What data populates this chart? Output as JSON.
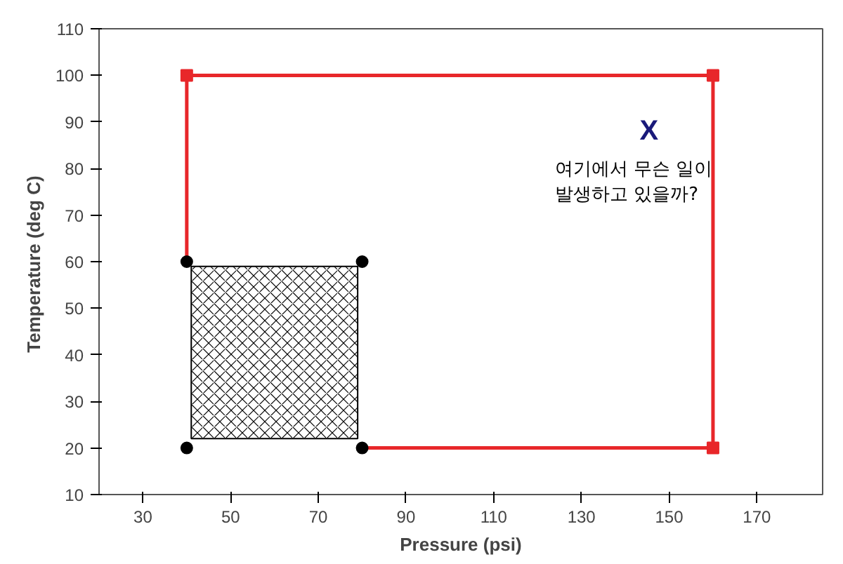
{
  "chart_data": {
    "type": "scatter",
    "xlabel": "Pressure (psi)",
    "ylabel": "Temperature  (deg C)",
    "xlim": [
      20,
      185
    ],
    "ylim": [
      10,
      110
    ],
    "xticks": [
      30,
      50,
      70,
      90,
      110,
      130,
      150,
      170
    ],
    "yticks": [
      10,
      20,
      30,
      40,
      50,
      60,
      70,
      80,
      90,
      100,
      110
    ],
    "grid": false,
    "series": [
      {
        "type": "bar",
        "color": "#000000",
        "x": [
          60
        ],
        "values": [
          37
        ],
        "base": [
          22
        ]
      },
      {
        "type": "line",
        "color": "#e8272a",
        "line_style": "solid",
        "marker": "none",
        "x": [
          40,
          40,
          160,
          160,
          80
        ],
        "values": [
          60,
          100,
          100,
          20,
          20
        ]
      },
      {
        "color": "#e8272a",
        "marker": "square",
        "x": [
          40,
          160,
          160
        ],
        "values": [
          100,
          100,
          20
        ]
      },
      {
        "color": "#000000",
        "marker": "circle",
        "x": [
          40,
          80,
          40,
          80
        ],
        "values": [
          60,
          60,
          20,
          20
        ]
      }
    ],
    "annotations": [
      "X",
      "여기에서 무슨 일이\n발생하고 있을까?"
    ]
  }
}
